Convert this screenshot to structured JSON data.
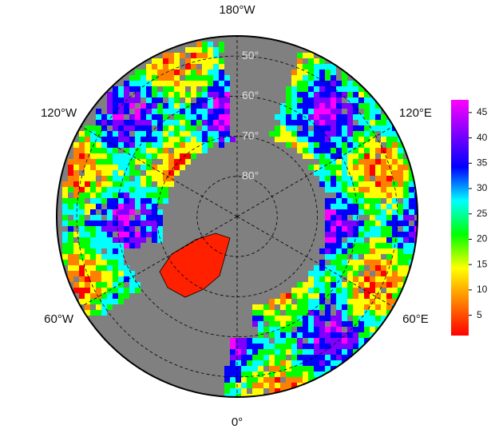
{
  "map": {
    "lat_lim": [
      45,
      90
    ],
    "latitude_labels": [
      {
        "value": 50,
        "label": "50°"
      },
      {
        "value": 60,
        "label": "60°"
      },
      {
        "value": 70,
        "label": "70°"
      },
      {
        "value": 80,
        "label": "80°"
      }
    ],
    "longitude_labels": [
      {
        "value": -180,
        "label": "180°W"
      },
      {
        "value": -120,
        "label": "120°W"
      },
      {
        "value": 120,
        "label": "120°E"
      },
      {
        "value": -60,
        "label": "60°W"
      },
      {
        "value": 60,
        "label": "60°E"
      },
      {
        "value": 0,
        "label": "0°"
      }
    ],
    "colorbar": {
      "lim": [
        1,
        47.5
      ],
      "ticks": [
        5,
        10,
        15,
        20,
        25,
        30,
        35,
        40,
        45
      ],
      "colors": [
        "#ff0000",
        "#ff8000",
        "#ffff00",
        "#00ff00",
        "#00ffff",
        "#0000ff",
        "#8000ff",
        "#ff00ff"
      ]
    }
  }
}
